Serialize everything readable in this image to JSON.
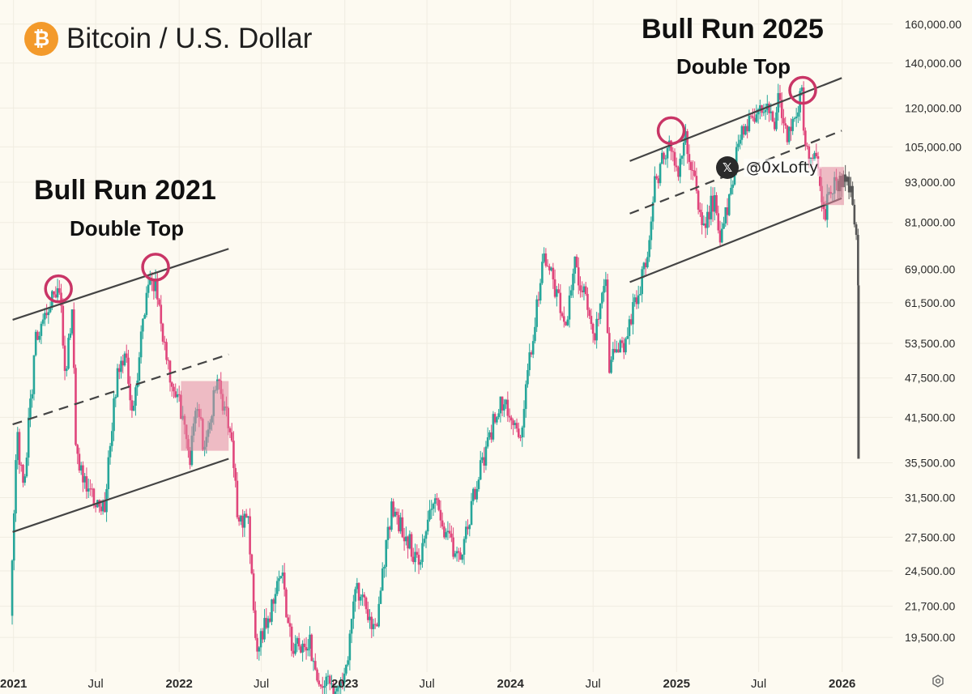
{
  "header": {
    "title": "Bitcoin / U.S. Dollar",
    "icon": "bitcoin-icon",
    "icon_glyph": "₿"
  },
  "annotations": {
    "left_title": "Bull Run 2021",
    "left_subtitle": "Double Top",
    "right_title": "Bull Run 2025",
    "right_subtitle": "Double Top"
  },
  "watermark": {
    "icon": "x-logo-icon",
    "icon_glyph": "𝕏",
    "handle": "@0xLofty"
  },
  "colors": {
    "up": "#26a69a",
    "down": "#e0457b",
    "grid": "#f0ece1",
    "channel": "#444444",
    "circle": "#c93566",
    "box": "#e2879f",
    "background": "#fdfaf1"
  },
  "chart_data": {
    "type": "candlestick",
    "title": "Bitcoin / U.S. Dollar",
    "y_scale": "log",
    "ylim": [
      17500,
      170000
    ],
    "y_ticks": [
      19500,
      21700,
      24500,
      27500,
      31500,
      35500,
      41500,
      47500,
      53500,
      61500,
      69000,
      81000,
      93000,
      105000,
      120000,
      140000,
      160000
    ],
    "y_tick_labels": [
      "19,500.00",
      "21,700.00",
      "24,500.00",
      "27,500.00",
      "31,500.00",
      "35,500.00",
      "41,500.00",
      "47,500.00",
      "53,500.00",
      "61,500.00",
      "69,000.00",
      "81,000.00",
      "93,000.00",
      "105,000.00",
      "120,000.00",
      "140,000.00",
      "160,000.00"
    ],
    "x_range": [
      "2020-12-20",
      "2026-04-15"
    ],
    "x_ticks": [
      {
        "date": "2021-01-01",
        "label": "2021",
        "bold": true
      },
      {
        "date": "2021-07-01",
        "label": "Jul",
        "bold": false
      },
      {
        "date": "2022-01-01",
        "label": "2022",
        "bold": true
      },
      {
        "date": "2022-07-01",
        "label": "Jul",
        "bold": false
      },
      {
        "date": "2023-01-01",
        "label": "2023",
        "bold": true
      },
      {
        "date": "2023-07-01",
        "label": "Jul",
        "bold": false
      },
      {
        "date": "2024-01-01",
        "label": "2024",
        "bold": true
      },
      {
        "date": "2024-07-01",
        "label": "Jul",
        "bold": false
      },
      {
        "date": "2025-01-01",
        "label": "2025",
        "bold": true
      },
      {
        "date": "2025-07-01",
        "label": "Jul",
        "bold": false
      },
      {
        "date": "2026-01-01",
        "label": "2026",
        "bold": true
      }
    ],
    "price_path": [
      [
        "2020-12-25",
        21000
      ],
      [
        "2021-01-08",
        40000
      ],
      [
        "2021-01-22",
        32000
      ],
      [
        "2021-02-20",
        55000
      ],
      [
        "2021-03-13",
        61000
      ],
      [
        "2021-04-14",
        63000
      ],
      [
        "2021-04-25",
        49000
      ],
      [
        "2021-05-10",
        58000
      ],
      [
        "2021-05-19",
        37000
      ],
      [
        "2021-06-08",
        33000
      ],
      [
        "2021-06-25",
        31500
      ],
      [
        "2021-07-20",
        30000
      ],
      [
        "2021-08-15",
        47000
      ],
      [
        "2021-09-06",
        52000
      ],
      [
        "2021-09-22",
        41000
      ],
      [
        "2021-10-20",
        64000
      ],
      [
        "2021-11-10",
        67000
      ],
      [
        "2021-11-26",
        54000
      ],
      [
        "2021-12-20",
        46000
      ],
      [
        "2022-01-10",
        41500
      ],
      [
        "2022-01-24",
        35500
      ],
      [
        "2022-02-10",
        44000
      ],
      [
        "2022-02-24",
        37000
      ],
      [
        "2022-03-28",
        47500
      ],
      [
        "2022-04-25",
        38500
      ],
      [
        "2022-05-12",
        29000
      ],
      [
        "2022-06-01",
        30000
      ],
      [
        "2022-06-18",
        19000
      ],
      [
        "2022-07-15",
        20500
      ],
      [
        "2022-08-14",
        24500
      ],
      [
        "2022-09-06",
        18800
      ],
      [
        "2022-10-15",
        19200
      ],
      [
        "2022-11-09",
        16500
      ],
      [
        "2022-12-31",
        16600
      ],
      [
        "2023-01-25",
        23000
      ],
      [
        "2023-03-10",
        20000
      ],
      [
        "2023-04-14",
        30500
      ],
      [
        "2023-06-15",
        25000
      ],
      [
        "2023-07-10",
        31500
      ],
      [
        "2023-09-10",
        25500
      ],
      [
        "2023-10-25",
        34500
      ],
      [
        "2023-12-08",
        44000
      ],
      [
        "2024-01-23",
        39500
      ],
      [
        "2024-03-14",
        73000
      ],
      [
        "2024-05-01",
        57000
      ],
      [
        "2024-05-21",
        71000
      ],
      [
        "2024-07-05",
        55000
      ],
      [
        "2024-07-29",
        69000
      ],
      [
        "2024-08-05",
        50000
      ],
      [
        "2024-09-06",
        53000
      ],
      [
        "2024-10-29",
        72000
      ],
      [
        "2024-11-13",
        92000
      ],
      [
        "2024-12-17",
        107000
      ],
      [
        "2025-01-05",
        94000
      ],
      [
        "2025-01-21",
        109000
      ],
      [
        "2025-02-28",
        79000
      ],
      [
        "2025-03-24",
        88000
      ],
      [
        "2025-04-09",
        76000
      ],
      [
        "2025-05-22",
        111000
      ],
      [
        "2025-07-14",
        122500
      ],
      [
        "2025-08-02",
        112000
      ],
      [
        "2025-08-14",
        124000
      ],
      [
        "2025-09-01",
        108000
      ],
      [
        "2025-10-06",
        126000
      ],
      [
        "2025-10-10",
        105000
      ],
      [
        "2025-11-04",
        100000
      ],
      [
        "2025-11-21",
        82000
      ],
      [
        "2025-12-10",
        92000
      ],
      [
        "2026-01-05",
        94000
      ],
      [
        "2026-01-20",
        90000
      ],
      [
        "2026-02-01",
        79000
      ],
      [
        "2026-02-05",
        64000
      ],
      [
        "2026-02-06",
        36000
      ]
    ],
    "annotations": [
      {
        "type": "channel",
        "period": "2021",
        "upper": [
          [
            "2020-12-30",
            58000
          ],
          [
            "2022-04-20",
            74000
          ]
        ],
        "mid": [
          [
            "2020-12-30",
            40500
          ],
          [
            "2022-04-20",
            51500
          ]
        ],
        "lower": [
          [
            "2020-12-30",
            28000
          ],
          [
            "2022-04-20",
            36000
          ]
        ]
      },
      {
        "type": "channel",
        "period": "2025",
        "upper": [
          [
            "2024-09-20",
            100000
          ],
          [
            "2025-12-31",
            133000
          ]
        ],
        "mid": [
          [
            "2024-09-20",
            83500
          ],
          [
            "2025-12-31",
            111000
          ]
        ],
        "lower": [
          [
            "2024-09-20",
            66000
          ],
          [
            "2025-12-31",
            88000
          ]
        ]
      },
      {
        "type": "circle",
        "date": "2021-04-10",
        "price": 64500
      },
      {
        "type": "circle",
        "date": "2021-11-10",
        "price": 69500
      },
      {
        "type": "circle",
        "date": "2024-12-20",
        "price": 111000
      },
      {
        "type": "circle",
        "date": "2025-10-06",
        "price": 127500
      },
      {
        "type": "box",
        "from": [
          "2022-01-05",
          37000
        ],
        "to": [
          "2022-04-20",
          47000
        ]
      },
      {
        "type": "box",
        "from": [
          "2025-11-15",
          86000
        ],
        "to": [
          "2026-01-05",
          98000
        ]
      }
    ]
  }
}
